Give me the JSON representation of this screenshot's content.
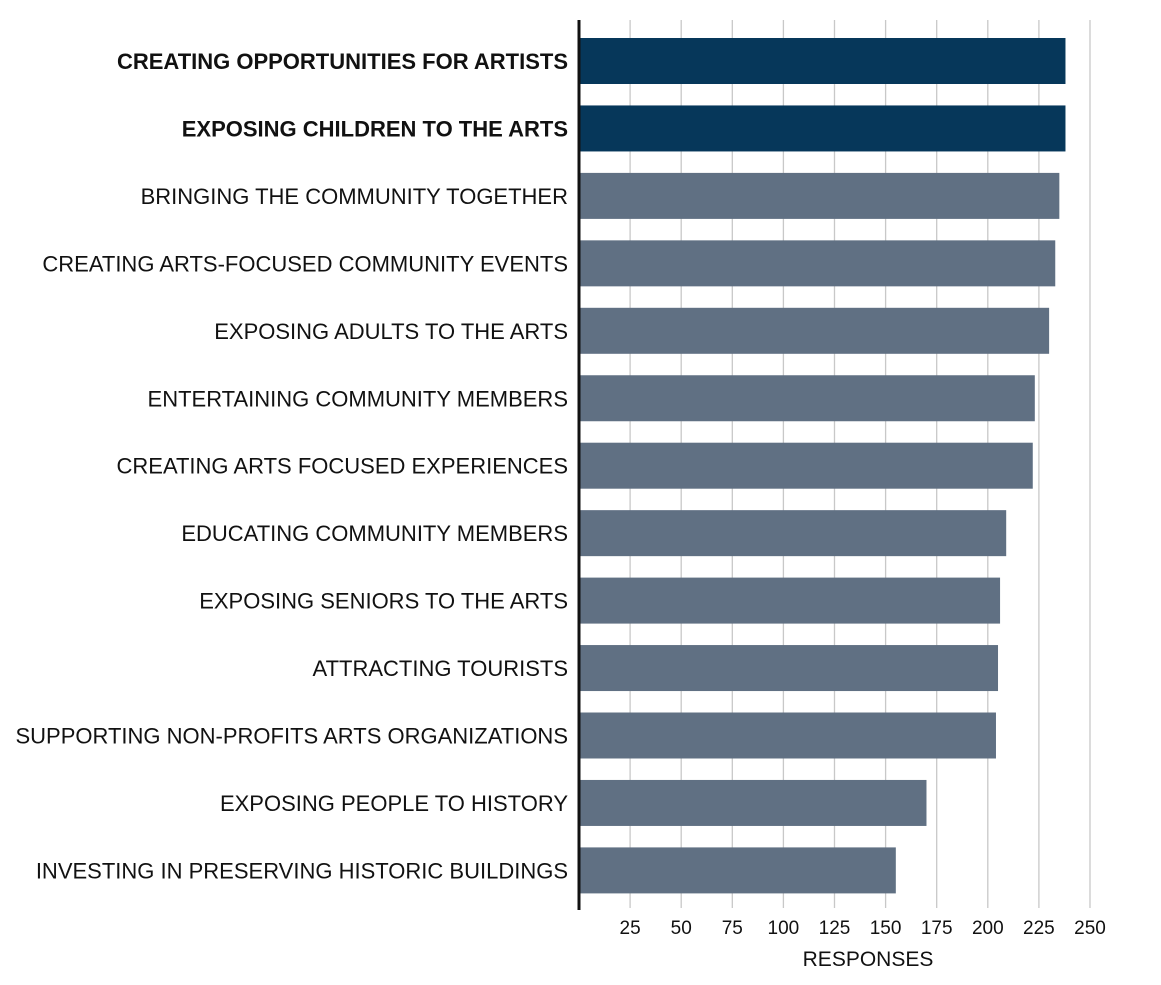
{
  "chart_data": {
    "type": "bar",
    "orientation": "horizontal",
    "categories": [
      "CREATING OPPORTUNITIES FOR ARTISTS",
      "EXPOSING CHILDREN TO THE ARTS",
      "BRINGING THE COMMUNITY TOGETHER",
      "CREATING ARTS-FOCUSED COMMUNITY EVENTS",
      "EXPOSING ADULTS TO THE ARTS",
      "ENTERTAINING COMMUNITY MEMBERS",
      "CREATING ARTS FOCUSED EXPERIENCES",
      "EDUCATING COMMUNITY MEMBERS",
      "EXPOSING SENIORS TO THE ARTS",
      "ATTRACTING TOURISTS",
      "SUPPORTING NON-PROFITS ARTS ORGANIZATIONS",
      "EXPOSING PEOPLE TO HISTORY",
      "INVESTING IN PRESERVING HISTORIC BUILDINGS"
    ],
    "values": [
      238,
      238,
      235,
      233,
      230,
      223,
      222,
      209,
      206,
      205,
      204,
      170,
      155
    ],
    "highlighted": [
      true,
      true,
      false,
      false,
      false,
      false,
      false,
      false,
      false,
      false,
      false,
      false,
      false
    ],
    "title": "",
    "xlabel": "RESPONSES",
    "ylabel": "",
    "xlim": [
      0,
      250
    ],
    "xticks": [
      25,
      50,
      75,
      100,
      125,
      150,
      175,
      200,
      225,
      250
    ],
    "grid": "vertical",
    "colors": {
      "highlight": "#06375a",
      "default": "#607083",
      "grid": "#c8c8c8",
      "axis": "#111111"
    }
  }
}
